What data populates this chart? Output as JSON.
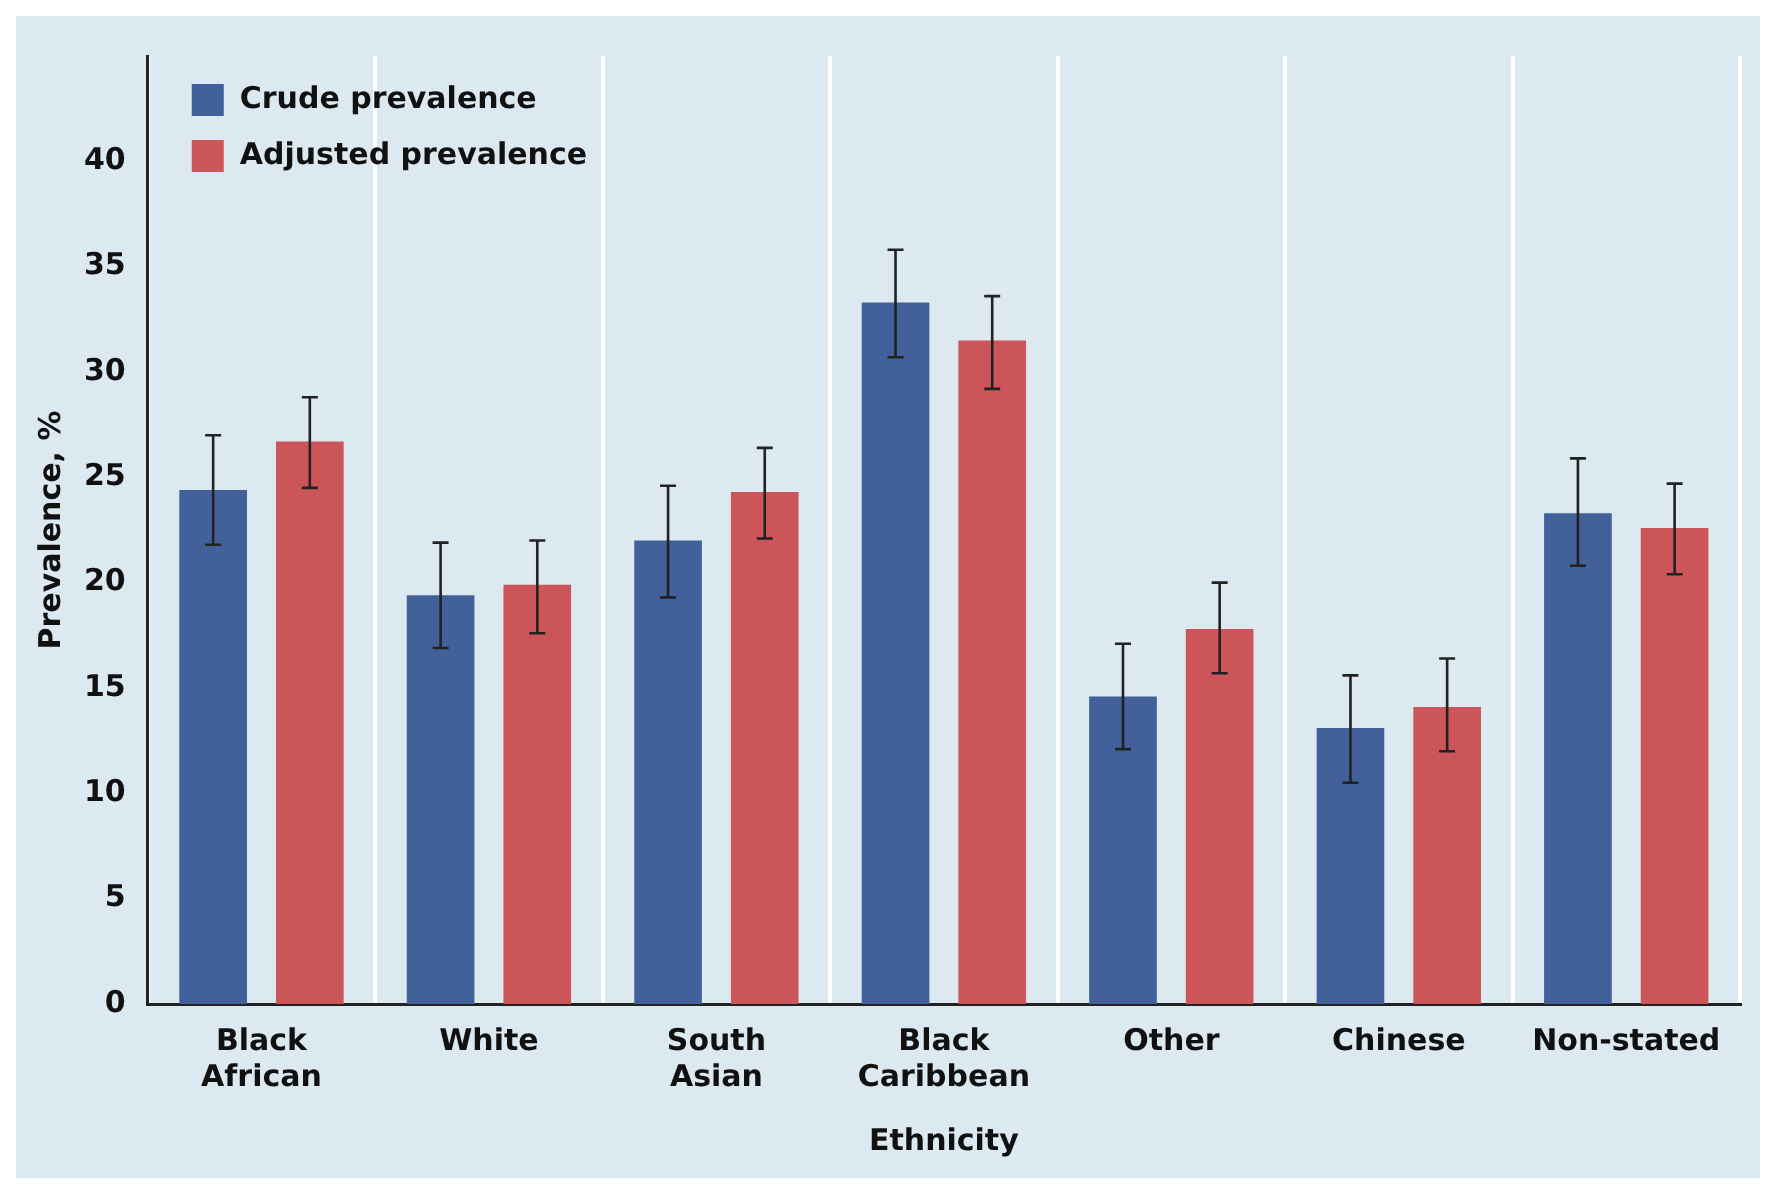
{
  "chart_data": {
    "type": "bar",
    "xlabel": "Ethnicity",
    "ylabel": "Prevalence, %",
    "categories": [
      "Black African",
      "White",
      "South Asian",
      "Black Caribbean",
      "Other",
      "Chinese",
      "Non-stated"
    ],
    "series": [
      {
        "name": "Crude prevalence",
        "color": "#42609a",
        "values": [
          24.4,
          19.4,
          22.0,
          33.3,
          14.6,
          13.1,
          23.3
        ],
        "errors": [
          [
            21.8,
            27.0
          ],
          [
            16.9,
            21.9
          ],
          [
            19.3,
            24.6
          ],
          [
            30.7,
            35.8
          ],
          [
            12.1,
            17.1
          ],
          [
            10.5,
            15.6
          ],
          [
            20.8,
            25.9
          ]
        ]
      },
      {
        "name": "Adjusted prevalence",
        "color": "#cc5559",
        "values": [
          26.7,
          19.9,
          24.3,
          31.5,
          17.8,
          14.1,
          22.6
        ],
        "errors": [
          [
            24.5,
            28.8
          ],
          [
            17.6,
            22.0
          ],
          [
            22.1,
            26.4
          ],
          [
            29.2,
            33.6
          ],
          [
            15.7,
            20.0
          ],
          [
            12.0,
            16.4
          ],
          [
            20.4,
            24.7
          ]
        ]
      }
    ],
    "ylim": [
      0,
      45
    ],
    "yticks": [
      0,
      5,
      10,
      15,
      20,
      25,
      30,
      35,
      40
    ],
    "grid": "x",
    "legend": "top left"
  }
}
